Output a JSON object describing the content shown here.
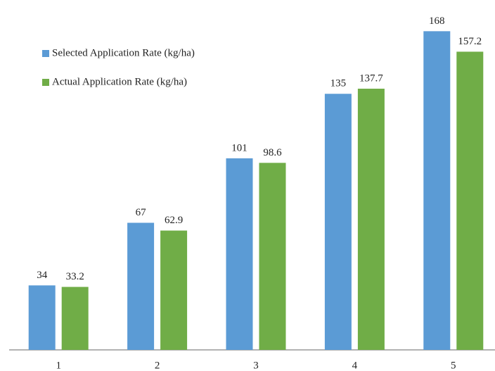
{
  "chart_data": {
    "type": "bar",
    "categories": [
      "1",
      "2",
      "3",
      "4",
      "5"
    ],
    "series": [
      {
        "name": "Selected Application Rate (kg/ha)",
        "color": "#5b9bd5",
        "values": [
          34,
          67,
          101,
          135,
          168
        ]
      },
      {
        "name": "Actual Application Rate (kg/ha)",
        "color": "#70ad47",
        "values": [
          33.2,
          62.9,
          98.6,
          137.7,
          157.2
        ]
      }
    ],
    "ylim": [
      0,
      180
    ],
    "legend": "upper left"
  }
}
